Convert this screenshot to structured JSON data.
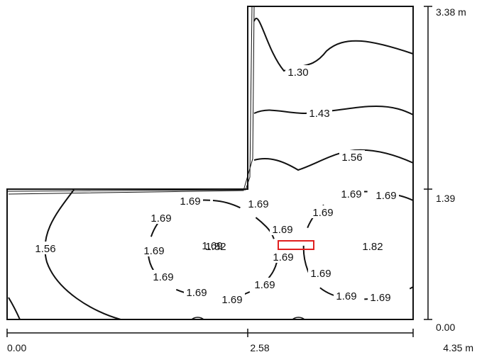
{
  "plan": {
    "axis_x": {
      "ticks": [
        "0.00",
        "2.58",
        "4.35 m"
      ]
    },
    "axis_y": {
      "ticks": [
        "3.38 m",
        "1.39",
        "0.00"
      ]
    },
    "contour_labels": [
      "1.30",
      "1.43",
      "1.56",
      "1.56",
      "1.69",
      "1.69",
      "1.69",
      "1.69",
      "1.69",
      "1.69",
      "1.69",
      "1.69",
      "1.69",
      "1.69",
      "1.69",
      "1.69",
      "1.69",
      "1.69",
      "1.69",
      "1.69",
      "1.69",
      "1.82",
      "1.82"
    ],
    "colors": {
      "line": "#111111",
      "marker": "#e02020"
    }
  }
}
